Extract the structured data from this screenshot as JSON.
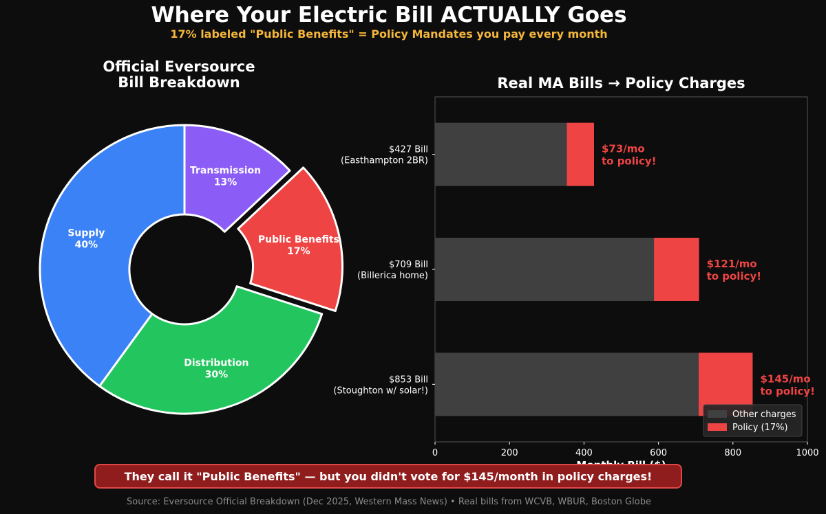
{
  "title": "Where Your Electric Bill ACTUALLY Goes",
  "subtitle": "17% labeled \"Public Benefits\" = Policy Mandates you pay every month",
  "callout": "They call it \"Public Benefits\" — but you didn't vote for $145/month in policy charges!",
  "source": "Source: Eversource Official Breakdown (Dec 2025, Western Mass News) • Real bills from WCVB, WBUR, Boston Globe",
  "colors": {
    "subtitle": "#f5b73b",
    "supply": "#3b82f6",
    "distribution": "#22c55e",
    "public_benefits": "#ef4444",
    "transmission": "#8b5cf6",
    "other_charges": "#404040",
    "policy": "#ef4444"
  },
  "chart_data": [
    {
      "type": "pie",
      "title_lines": [
        "Official Eversource",
        "Bill Breakdown"
      ],
      "style": "donut",
      "slices": [
        {
          "label": "Transmission",
          "value": 13,
          "color_key": "transmission",
          "exploded": false
        },
        {
          "label": "Public Benefits",
          "value": 17,
          "color_key": "public_benefits",
          "exploded": true
        },
        {
          "label": "Distribution",
          "value": 30,
          "color_key": "distribution",
          "exploded": false
        },
        {
          "label": "Supply",
          "value": 40,
          "color_key": "supply",
          "exploded": false
        }
      ]
    },
    {
      "type": "bar",
      "orientation": "horizontal",
      "stacked": true,
      "title": "Real MA Bills → Policy Charges",
      "xlabel": "Monthly Bill ($)",
      "xlim": [
        0,
        1000
      ],
      "xticks": [
        0,
        200,
        400,
        600,
        800,
        1000
      ],
      "legend_position": "lower-right",
      "categories": [
        {
          "line1": "$427 Bill",
          "line2": "(Easthampton 2BR)"
        },
        {
          "line1": "$709 Bill",
          "line2": "(Billerica home)"
        },
        {
          "line1": "$853 Bill",
          "line2": "(Stoughton w/ solar!)"
        }
      ],
      "series": [
        {
          "name": "Other charges",
          "color_key": "other_charges",
          "values": [
            354,
            588,
            708
          ]
        },
        {
          "name": "Policy (17%)",
          "color_key": "policy",
          "values": [
            73,
            121,
            145
          ]
        }
      ],
      "annotations": [
        {
          "line1": "$73/mo",
          "line2": "to policy!"
        },
        {
          "line1": "$121/mo",
          "line2": "to policy!"
        },
        {
          "line1": "$145/mo",
          "line2": "to policy!"
        }
      ]
    }
  ]
}
